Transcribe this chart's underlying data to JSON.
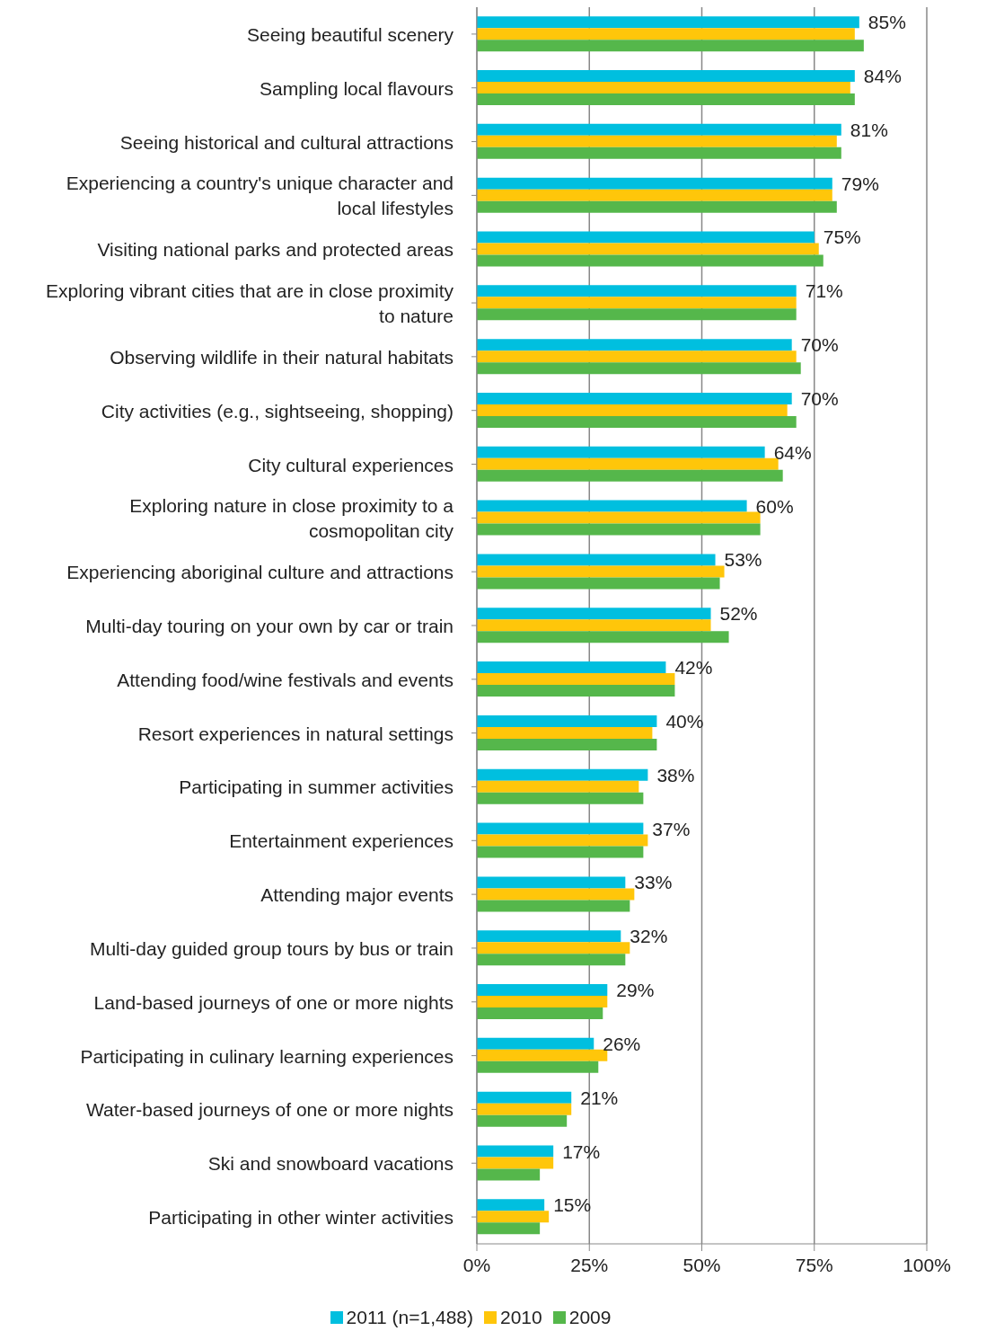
{
  "chart_data": {
    "type": "bar",
    "orientation": "horizontal",
    "categories": [
      "Seeing beautiful scenery",
      "Sampling local flavours",
      "Seeing historical and cultural attractions",
      "Experiencing a country's unique character and local lifestyles",
      "Visiting national parks and protected areas",
      "Exploring vibrant cities that are in close proximity to nature",
      "Observing wildlife in their natural habitats",
      "City activities (e.g., sightseeing, shopping)",
      "City cultural experiences",
      "Exploring nature in close proximity to a cosmopolitan city",
      "Experiencing aboriginal culture and attractions",
      "Multi-day touring on your own by car or train",
      "Attending food/wine festivals and events",
      "Resort experiences in natural settings",
      "Participating in summer activities",
      "Entertainment experiences",
      "Attending major events",
      "Multi-day guided group tours by bus or train",
      "Land-based journeys of one or more nights",
      "Participating in culinary learning experiences",
      "Water-based journeys of one or more nights",
      "Ski and snowboard vacations",
      "Participating in other winter activities"
    ],
    "series": [
      {
        "name": "2011 (n=1,488)",
        "color": "#00bfdf",
        "values": [
          85,
          84,
          81,
          79,
          75,
          71,
          70,
          70,
          64,
          60,
          53,
          52,
          42,
          40,
          38,
          37,
          33,
          32,
          29,
          26,
          21,
          17,
          15
        ],
        "value_labels": [
          "85%",
          "84%",
          "81%",
          "79%",
          "75%",
          "71%",
          "70%",
          "70%",
          "64%",
          "60%",
          "53%",
          "52%",
          "42%",
          "40%",
          "38%",
          "37%",
          "33%",
          "32%",
          "29%",
          "26%",
          "21%",
          "17%",
          "15%"
        ]
      },
      {
        "name": "2010",
        "color": "#ffc60a",
        "values": [
          84,
          83,
          80,
          79,
          76,
          71,
          71,
          69,
          67,
          63,
          55,
          52,
          44,
          39,
          36,
          38,
          35,
          34,
          29,
          29,
          21,
          17,
          16
        ]
      },
      {
        "name": "2009",
        "color": "#55b74b",
        "values": [
          86,
          84,
          81,
          80,
          77,
          71,
          72,
          71,
          68,
          63,
          54,
          56,
          44,
          40,
          37,
          37,
          34,
          33,
          28,
          27,
          20,
          14,
          14
        ]
      }
    ],
    "xlim": [
      0,
      100
    ],
    "xticks": [
      {
        "value": 0,
        "label": "0%"
      },
      {
        "value": 25,
        "label": "25%"
      },
      {
        "value": 50,
        "label": "50%"
      },
      {
        "value": 75,
        "label": "75%"
      },
      {
        "value": 100,
        "label": "100%"
      }
    ],
    "grid": "x",
    "legend": "bottom"
  }
}
